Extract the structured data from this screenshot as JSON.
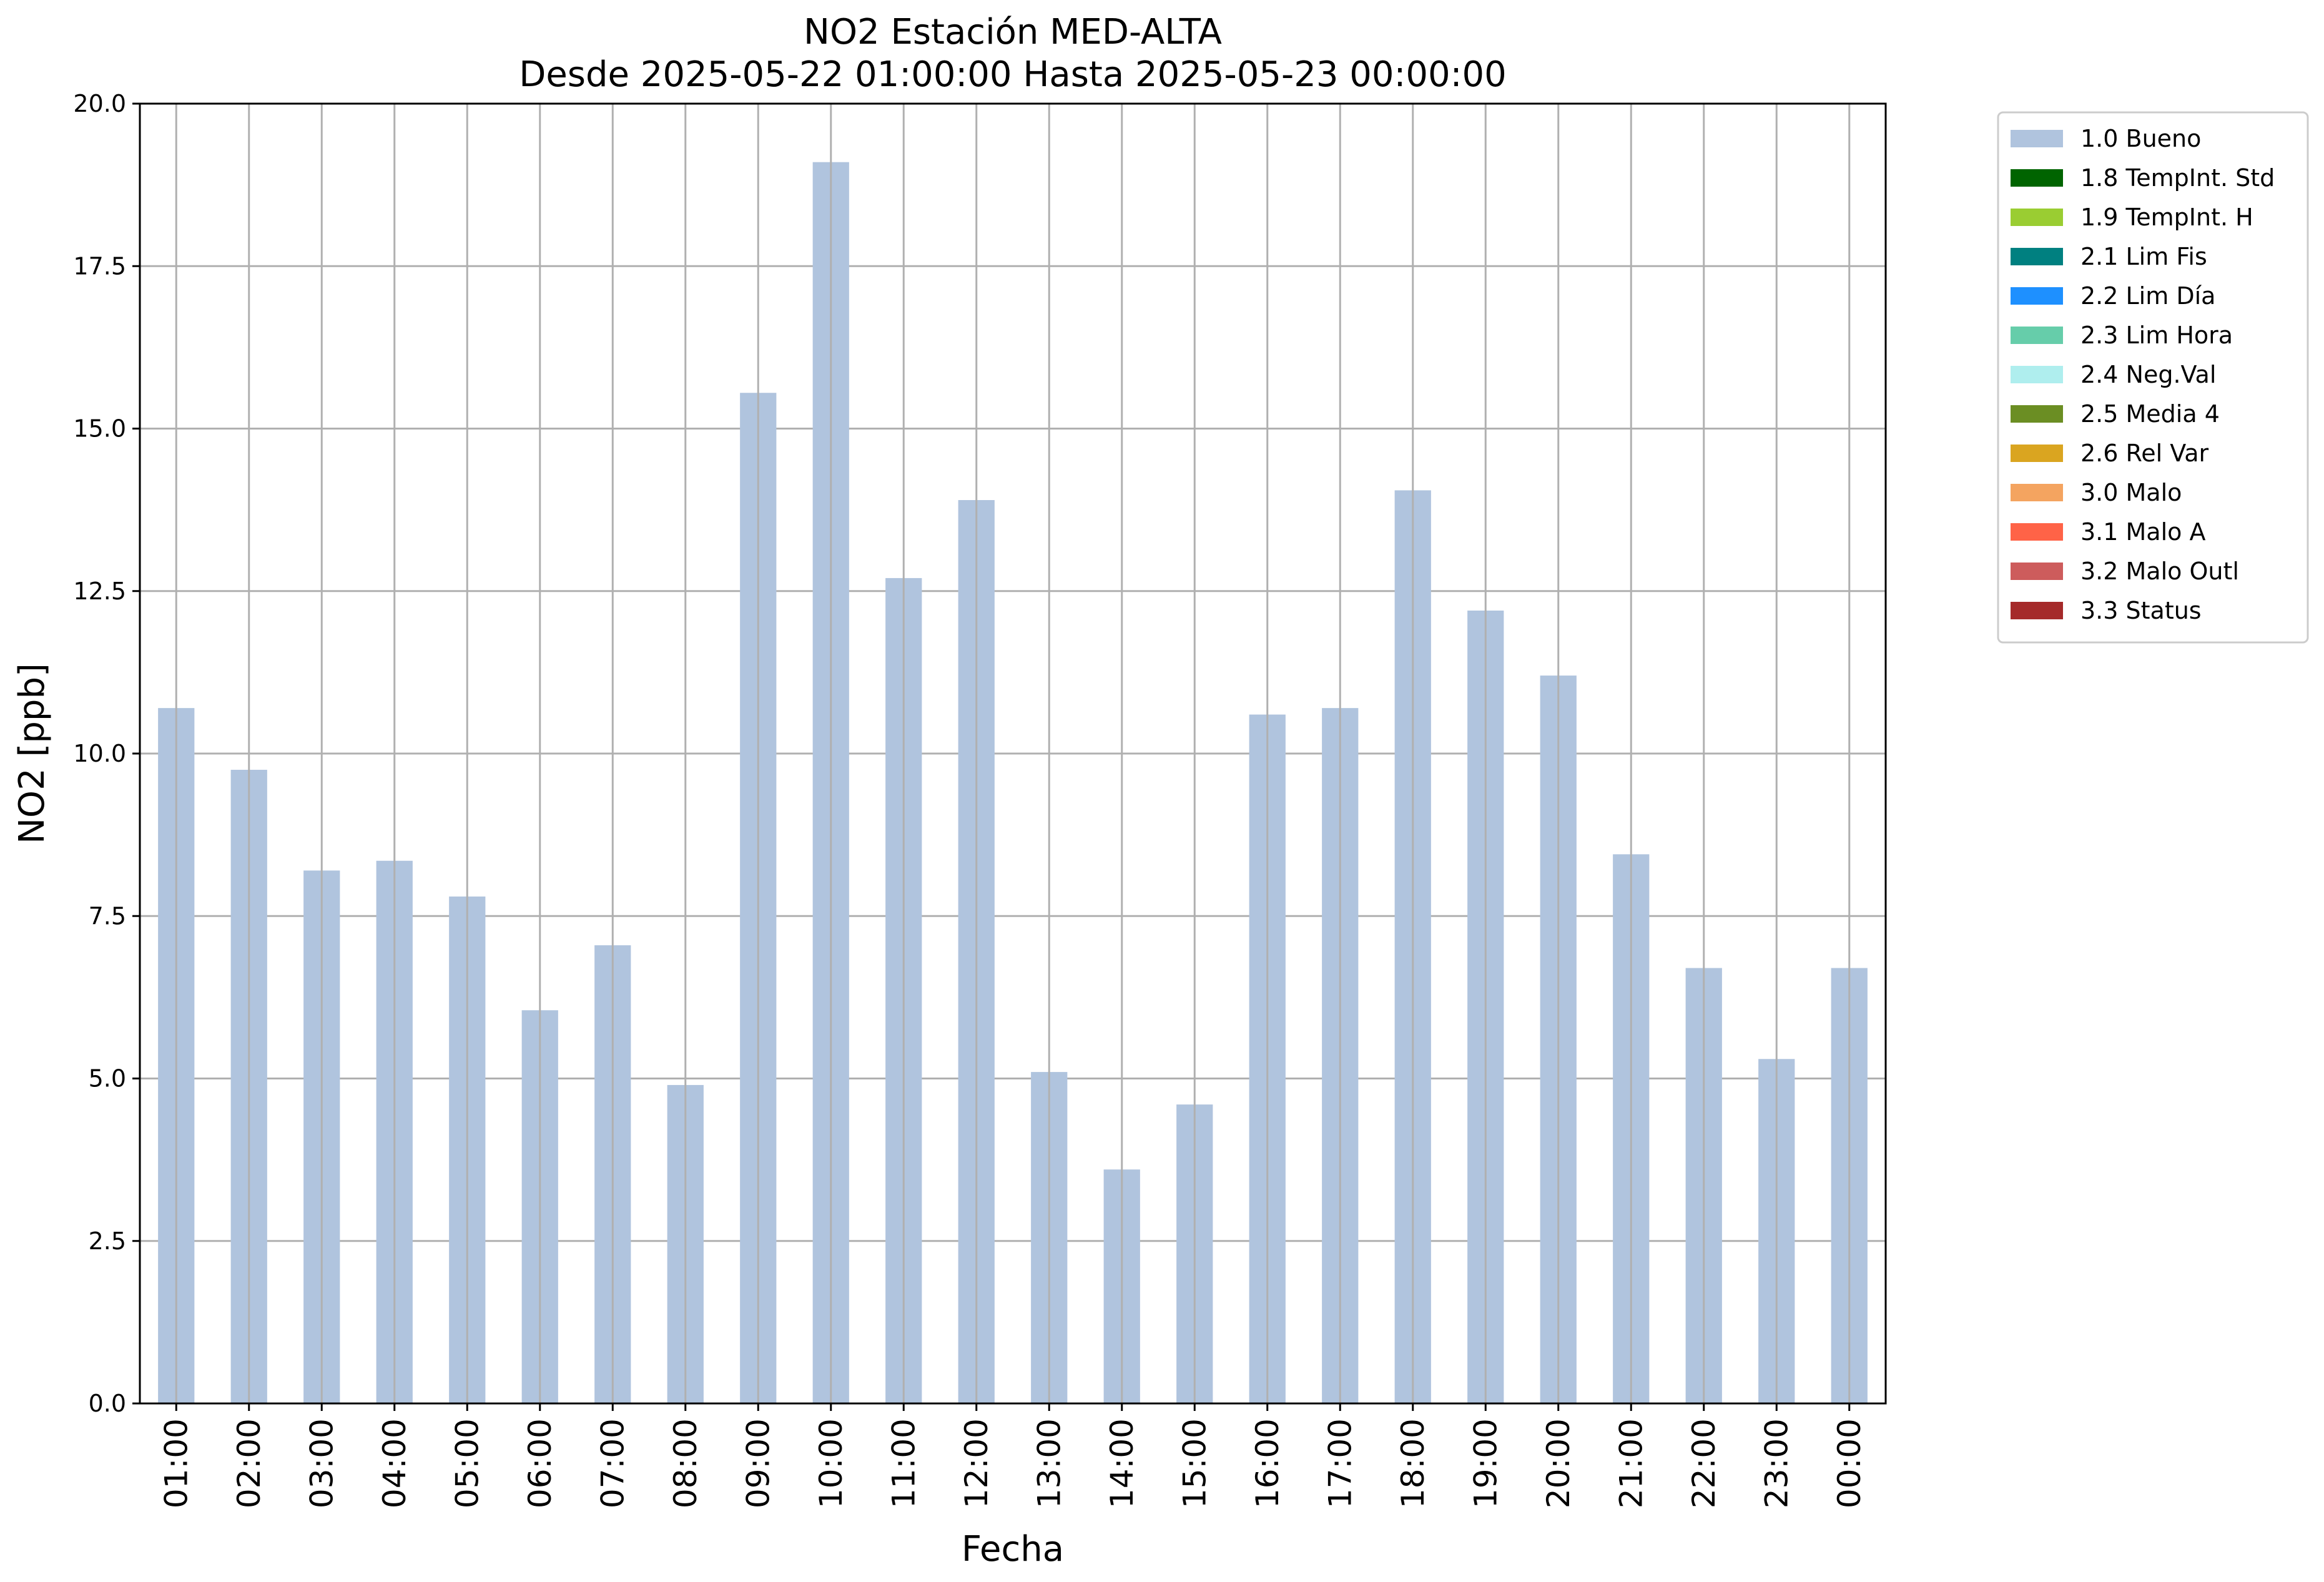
{
  "chart_data": {
    "type": "bar",
    "title": "NO2 Estación MED-ALTA",
    "subtitle": "Desde 2025-05-22 01:00:00 Hasta 2025-05-23 00:00:00",
    "xlabel": "Fecha",
    "ylabel": "NO2 [ppb]",
    "ylim": [
      0,
      20
    ],
    "yticks": [
      "0.0",
      "2.5",
      "5.0",
      "7.5",
      "10.0",
      "12.5",
      "15.0",
      "17.5",
      "20.0"
    ],
    "grid": true,
    "legend_position": "outside-top-right",
    "categories": [
      "01:00",
      "02:00",
      "03:00",
      "04:00",
      "05:00",
      "06:00",
      "07:00",
      "08:00",
      "09:00",
      "10:00",
      "11:00",
      "12:00",
      "13:00",
      "14:00",
      "15:00",
      "16:00",
      "17:00",
      "18:00",
      "19:00",
      "20:00",
      "21:00",
      "22:00",
      "23:00",
      "00:00"
    ],
    "series": [
      {
        "name": "1.0 Bueno",
        "color": "#b0c4de",
        "values": [
          10.7,
          9.75,
          8.2,
          8.35,
          7.8,
          6.05,
          7.05,
          4.9,
          15.55,
          19.1,
          12.7,
          13.9,
          5.1,
          3.6,
          4.6,
          10.6,
          10.7,
          14.05,
          12.2,
          11.2,
          8.45,
          6.7,
          5.3,
          6.7
        ]
      }
    ],
    "legend": [
      {
        "label": "1.0 Bueno",
        "color": "#b0c4de"
      },
      {
        "label": "1.8 TempInt. Std",
        "color": "#006400"
      },
      {
        "label": "1.9 TempInt. H",
        "color": "#9acd32"
      },
      {
        "label": "2.1 Lim Fis",
        "color": "#008080"
      },
      {
        "label": "2.2 Lim Día",
        "color": "#1e90ff"
      },
      {
        "label": "2.3 Lim Hora",
        "color": "#66cdaa"
      },
      {
        "label": "2.4 Neg.Val",
        "color": "#afeeee"
      },
      {
        "label": "2.5 Media 4",
        "color": "#6b8e23"
      },
      {
        "label": "2.6 Rel Var",
        "color": "#daa520"
      },
      {
        "label": "3.0 Malo",
        "color": "#f4a460"
      },
      {
        "label": "3.1 Malo A",
        "color": "#ff6347"
      },
      {
        "label": "3.2 Malo Outl",
        "color": "#cd5c5c"
      },
      {
        "label": "3.3 Status",
        "color": "#a52a2a"
      }
    ]
  }
}
